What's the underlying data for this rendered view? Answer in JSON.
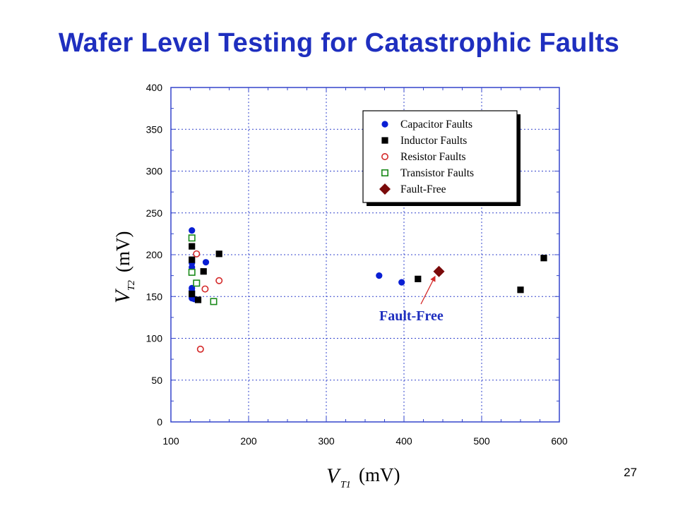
{
  "slide": {
    "title": "Wafer Level Testing for Catastrophic Faults",
    "page_number": "27"
  },
  "chart_data": {
    "type": "scatter",
    "title": "Wafer Level Testing for Catastrophic Faults",
    "xlabel": {
      "main": "V",
      "sub": "T1",
      "unit": "(mV)"
    },
    "ylabel": {
      "main": "V",
      "sub": "T2",
      "unit": "(mV)"
    },
    "xlim": [
      100,
      600
    ],
    "ylim": [
      0,
      400
    ],
    "x_ticks": [
      100,
      200,
      300,
      400,
      500,
      600
    ],
    "y_ticks": [
      0,
      50,
      100,
      150,
      200,
      250,
      300,
      350,
      400
    ],
    "x_minor_step": 25,
    "y_minor_step": 25,
    "grid": true,
    "legend_position": "top-right",
    "series": [
      {
        "name": "Capacitor Faults",
        "marker": "filled-circle",
        "color": "#0a1fd4",
        "points": [
          [
            127,
            229
          ],
          [
            127,
            190
          ],
          [
            127,
            185
          ],
          [
            127,
            181
          ],
          [
            127,
            160
          ],
          [
            127,
            157
          ],
          [
            127,
            148
          ],
          [
            130,
            147
          ],
          [
            145,
            191
          ],
          [
            368,
            175
          ],
          [
            397,
            167
          ]
        ]
      },
      {
        "name": "Inductor Faults",
        "marker": "filled-square",
        "color": "#000000",
        "points": [
          [
            127,
            210
          ],
          [
            127,
            194
          ],
          [
            127,
            153
          ],
          [
            135,
            146
          ],
          [
            142,
            180
          ],
          [
            162,
            201
          ],
          [
            418,
            171
          ],
          [
            550,
            158
          ],
          [
            580,
            196
          ]
        ]
      },
      {
        "name": "Resistor Faults",
        "marker": "open-circle",
        "color": "#d42a2a",
        "points": [
          [
            133,
            201
          ],
          [
            144,
            159
          ],
          [
            162,
            169
          ],
          [
            138,
            87
          ]
        ]
      },
      {
        "name": "Transistor Faults",
        "marker": "open-square",
        "color": "#1a8a1a",
        "points": [
          [
            127,
            220
          ],
          [
            127,
            179
          ],
          [
            133,
            166
          ],
          [
            155,
            144
          ]
        ]
      },
      {
        "name": "Fault-Free",
        "marker": "filled-diamond",
        "color": "#7a0a0a",
        "points": [
          [
            445,
            180
          ]
        ]
      }
    ],
    "annotation": {
      "text": "Fault-Free",
      "points_to": [
        445,
        180
      ]
    }
  }
}
